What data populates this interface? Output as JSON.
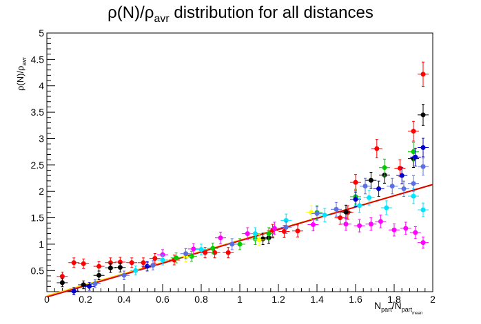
{
  "chart_data": {
    "type": "scatter",
    "title": {
      "main": "ρ(N)/ρ",
      "sub": "avr",
      "rest": " distribution for all distances"
    },
    "ylabel": {
      "main": "ρ(N)/ρ",
      "sub": "avr"
    },
    "xlabel": {
      "p1": "N",
      "s1": "part",
      "p2": "/N",
      "s2": "part",
      "s3": "mean"
    },
    "xlim": [
      0,
      2
    ],
    "ylim": [
      0.1,
      5
    ],
    "xticks": [
      0,
      0.2,
      0.4,
      0.6,
      0.8,
      1,
      1.2,
      1.4,
      1.6,
      1.8,
      2
    ],
    "xtick_labels": [
      "0",
      "0.2",
      "0.4",
      "0.6",
      "0.8",
      "1",
      "1.2",
      "1.4",
      "1.6",
      "1.8",
      "2"
    ],
    "yticks": [
      0.5,
      1,
      1.5,
      2,
      2.5,
      3,
      3.5,
      4,
      4.5,
      5
    ],
    "ytick_labels": [
      "0.5",
      "1",
      "1.5",
      "2",
      "2.5",
      "3",
      "3.5",
      "4",
      "4.5",
      "5"
    ],
    "series": [
      {
        "color": "#ff0000",
        "points": [
          [
            0.08,
            0.39
          ],
          [
            0.14,
            0.65
          ],
          [
            0.19,
            0.63
          ],
          [
            0.27,
            0.58
          ],
          [
            0.33,
            0.65
          ],
          [
            0.38,
            0.66
          ],
          [
            0.44,
            0.65
          ],
          [
            0.5,
            0.65
          ],
          [
            0.56,
            0.73
          ],
          [
            0.66,
            0.7
          ],
          [
            0.82,
            0.84
          ],
          [
            0.87,
            0.84
          ],
          [
            0.94,
            0.84
          ],
          [
            1.17,
            1.26
          ],
          [
            1.23,
            1.24
          ],
          [
            1.3,
            1.25
          ],
          [
            1.52,
            1.5
          ],
          [
            1.56,
            1.6
          ],
          [
            1.6,
            2.17
          ],
          [
            1.71,
            2.81
          ],
          [
            1.83,
            2.44
          ],
          [
            1.9,
            3.14
          ],
          [
            1.95,
            4.22
          ]
        ]
      },
      {
        "color": "#000000",
        "points": [
          [
            0.08,
            0.27
          ],
          [
            0.19,
            0.23
          ],
          [
            0.27,
            0.41
          ],
          [
            0.33,
            0.55
          ],
          [
            0.38,
            0.56
          ],
          [
            1.12,
            1.1
          ],
          [
            1.15,
            1.12
          ],
          [
            1.55,
            1.61
          ],
          [
            1.68,
            2.21
          ],
          [
            1.75,
            2.31
          ],
          [
            1.9,
            2.62
          ],
          [
            1.95,
            3.45
          ]
        ]
      },
      {
        "color": "#00cc00",
        "points": [
          [
            0.67,
            0.74
          ],
          [
            0.75,
            0.77
          ],
          [
            0.86,
            0.92
          ],
          [
            1.0,
            1.0
          ],
          [
            1.08,
            1.1
          ],
          [
            1.15,
            1.2
          ],
          [
            1.4,
            1.6
          ],
          [
            1.6,
            1.9
          ],
          [
            1.75,
            2.45
          ],
          [
            1.9,
            2.75
          ]
        ]
      },
      {
        "color": "#0000cc",
        "points": [
          [
            0.14,
            0.11
          ],
          [
            0.22,
            0.2
          ],
          [
            0.52,
            0.58
          ],
          [
            1.6,
            1.85
          ],
          [
            1.72,
            2.05
          ],
          [
            1.84,
            2.3
          ],
          [
            1.91,
            2.65
          ],
          [
            1.95,
            2.83
          ]
        ]
      },
      {
        "color": "#ffff00",
        "points": [
          [
            0.72,
            0.76
          ],
          [
            1.1,
            1.08
          ],
          [
            1.37,
            1.6
          ]
        ]
      },
      {
        "color": "#ff00ff",
        "points": [
          [
            0.6,
            0.8
          ],
          [
            0.76,
            0.91
          ],
          [
            0.9,
            1.12
          ],
          [
            1.04,
            1.2
          ],
          [
            1.18,
            1.3
          ],
          [
            1.38,
            1.37
          ],
          [
            1.55,
            1.38
          ],
          [
            1.62,
            1.35
          ],
          [
            1.68,
            1.38
          ],
          [
            1.73,
            1.43
          ],
          [
            1.8,
            1.27
          ],
          [
            1.86,
            1.3
          ],
          [
            1.91,
            1.22
          ],
          [
            1.95,
            1.03
          ]
        ]
      },
      {
        "color": "#00e5ff",
        "points": [
          [
            0.46,
            0.5
          ],
          [
            0.6,
            0.7
          ],
          [
            0.8,
            0.9
          ],
          [
            1.08,
            1.2
          ],
          [
            1.24,
            1.45
          ],
          [
            1.44,
            1.55
          ],
          [
            1.62,
            1.73
          ],
          [
            1.67,
            1.88
          ],
          [
            1.76,
            1.69
          ],
          [
            1.9,
            1.91
          ],
          [
            1.95,
            1.65
          ]
        ]
      },
      {
        "color": "#5b6fe0",
        "points": [
          [
            0.25,
            0.25
          ],
          [
            0.4,
            0.41
          ],
          [
            0.55,
            0.6
          ],
          [
            0.72,
            0.82
          ],
          [
            0.96,
            1.0
          ],
          [
            1.24,
            1.32
          ],
          [
            1.4,
            1.58
          ],
          [
            1.5,
            1.66
          ],
          [
            1.65,
            2.1
          ],
          [
            1.79,
            2.1
          ],
          [
            1.85,
            2.05
          ],
          [
            1.9,
            2.15
          ],
          [
            1.95,
            2.47
          ]
        ]
      }
    ],
    "fits": [
      {
        "color": "#ffd400",
        "x": [
          0,
          2
        ],
        "y": [
          0.02,
          2.13
        ]
      },
      {
        "color": "#dd0000",
        "x": [
          0,
          2
        ],
        "y": [
          0.0,
          2.13
        ]
      }
    ]
  }
}
